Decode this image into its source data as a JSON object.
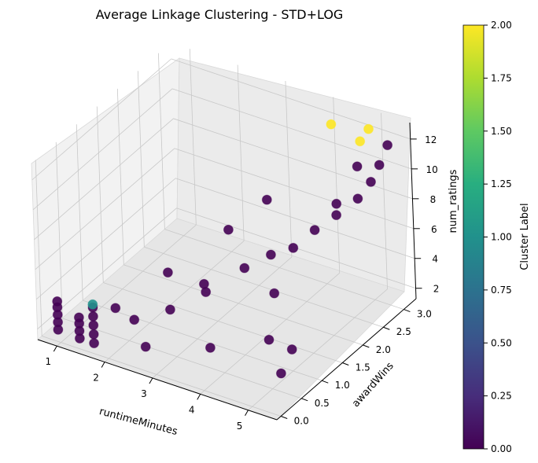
{
  "chart_data": {
    "type": "scatter",
    "projection": "3d",
    "title": "Average Linkage Clustering - STD+LOG",
    "xlabel": "runtimeMinutes",
    "ylabel": "awardWins",
    "zlabel": "num_ratings",
    "x_ticks": [
      "1",
      "2",
      "3",
      "4",
      "5"
    ],
    "y_ticks": [
      "0.0",
      "0.5",
      "1.0",
      "1.5",
      "2.0",
      "2.5",
      "3.0"
    ],
    "z_ticks": [
      "2",
      "4",
      "6",
      "8",
      "10",
      "12"
    ],
    "xlim": [
      0.6,
      5.6
    ],
    "ylim": [
      -0.1,
      3.3
    ],
    "zlim": [
      1.3,
      13.1
    ],
    "grid": true,
    "colormap": "viridis",
    "colorbar": {
      "label": "Cluster Label",
      "range": [
        0.0,
        2.0
      ],
      "ticks": [
        "0.00",
        "0.25",
        "0.50",
        "0.75",
        "1.00",
        "1.25",
        "1.50",
        "1.75",
        "2.00"
      ]
    },
    "series": [
      {
        "cluster": 0,
        "color": "#440154",
        "points": [
          [
            0.95,
            0.0,
            2.1
          ],
          [
            0.95,
            0.0,
            2.6
          ],
          [
            0.95,
            0.0,
            3.1
          ],
          [
            0.95,
            0.0,
            3.6
          ],
          [
            0.95,
            0.0,
            4.0
          ],
          [
            1.4,
            0.0,
            2.0
          ],
          [
            1.4,
            0.0,
            2.5
          ],
          [
            1.4,
            0.0,
            3.0
          ],
          [
            1.4,
            0.0,
            3.4
          ],
          [
            1.7,
            0.0,
            2.0
          ],
          [
            1.7,
            0.0,
            2.6
          ],
          [
            1.7,
            0.0,
            3.2
          ],
          [
            1.7,
            0.0,
            3.8
          ],
          [
            1.7,
            0.0,
            4.4
          ],
          [
            2.3,
            0.3,
            3.5
          ],
          [
            2.8,
            0.6,
            4.0
          ],
          [
            3.0,
            1.2,
            4.5
          ],
          [
            3.3,
            0.9,
            5.0
          ],
          [
            3.6,
            1.5,
            5.5
          ],
          [
            3.9,
            1.8,
            6.0
          ],
          [
            4.2,
            2.0,
            6.3
          ],
          [
            4.4,
            2.3,
            7.0
          ],
          [
            4.6,
            2.6,
            7.5
          ],
          [
            4.8,
            2.9,
            8.1
          ],
          [
            5.0,
            3.0,
            9.2
          ],
          [
            5.1,
            3.1,
            10.2
          ],
          [
            4.9,
            2.8,
            10.6
          ],
          [
            5.2,
            3.2,
            11.4
          ],
          [
            4.7,
            2.5,
            8.6
          ],
          [
            3.2,
            1.6,
            7.4
          ],
          [
            3.5,
            2.2,
            8.3
          ],
          [
            2.6,
            0.8,
            5.8
          ],
          [
            2.0,
            0.2,
            4.2
          ],
          [
            4.3,
            1.4,
            4.8
          ],
          [
            4.6,
            0.9,
            3.2
          ],
          [
            4.9,
            1.1,
            2.4
          ],
          [
            5.1,
            0.6,
            2.2
          ],
          [
            3.8,
            0.4,
            3.0
          ],
          [
            2.7,
            0.1,
            2.6
          ]
        ]
      },
      {
        "cluster": 1,
        "color": "#21918c",
        "points": [
          [
            1.7,
            0.0,
            4.6
          ]
        ]
      },
      {
        "cluster": 2,
        "color": "#fde725",
        "points": [
          [
            4.2,
            3.0,
            12.2
          ],
          [
            4.9,
            3.1,
            12.4
          ],
          [
            4.8,
            3.0,
            11.7
          ]
        ]
      }
    ]
  }
}
